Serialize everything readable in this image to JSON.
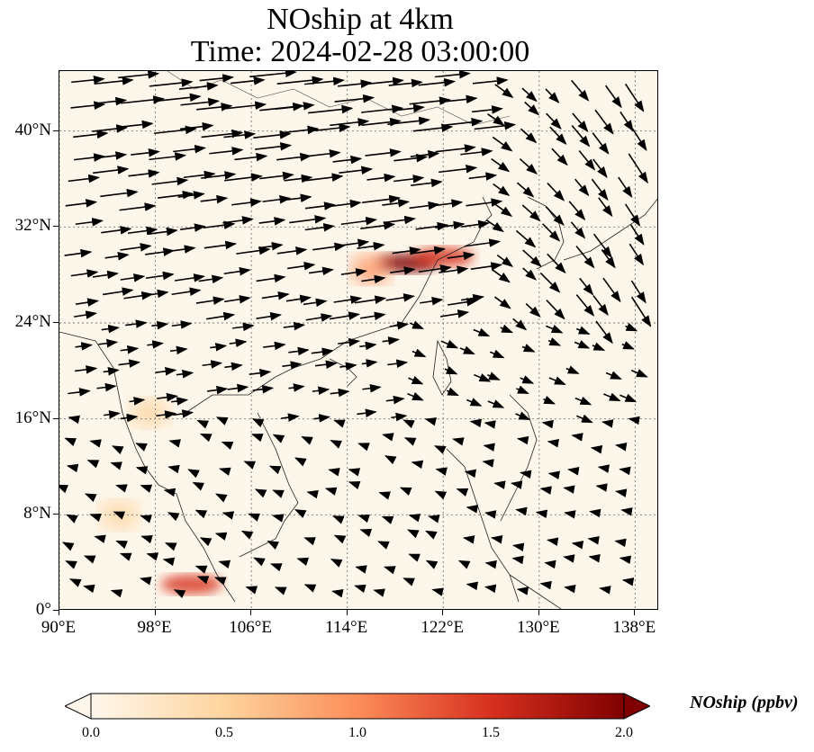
{
  "title": {
    "line1": "NOship at 4km",
    "line2": "Time: 2024-02-28 03:00:00"
  },
  "map": {
    "variable": "NOship",
    "level": "4km",
    "lon_range": [
      90,
      140
    ],
    "lat_range": [
      0,
      45
    ],
    "lat_ticks": [
      {
        "value": 40,
        "label": "40°N"
      },
      {
        "value": 32,
        "label": "32°N"
      },
      {
        "value": 24,
        "label": "24°N"
      },
      {
        "value": 16,
        "label": "16°N"
      },
      {
        "value": 8,
        "label": "8°N"
      },
      {
        "value": 0,
        "label": "0°"
      }
    ],
    "lon_ticks": [
      {
        "value": 90,
        "label": "90°E"
      },
      {
        "value": 98,
        "label": "98°E"
      },
      {
        "value": 106,
        "label": "106°E"
      },
      {
        "value": 114,
        "label": "114°E"
      },
      {
        "value": 122,
        "label": "122°E"
      },
      {
        "value": 130,
        "label": "130°E"
      },
      {
        "value": 138,
        "label": "138°E"
      }
    ],
    "gridlines": true,
    "colormap": "OrRd",
    "hotspots": [
      {
        "lon": 119,
        "lat": 29,
        "value": 2.0
      },
      {
        "lon": 122,
        "lat": 29.5,
        "value": 1.6
      },
      {
        "lon": 116,
        "lat": 28.5,
        "value": 1.0
      },
      {
        "lon": 101,
        "lat": 2.2,
        "value": 1.3
      },
      {
        "lon": 97.5,
        "lat": 16.5,
        "value": 0.7
      },
      {
        "lon": 95,
        "lat": 8,
        "value": 0.3
      }
    ]
  },
  "colorbar": {
    "label": "NOship (ppbv)",
    "min": 0.0,
    "max": 2.0,
    "extend": "both",
    "ticks": [
      {
        "value": 0.0,
        "label": "0.0"
      },
      {
        "value": 0.5,
        "label": "0.5"
      },
      {
        "value": 1.0,
        "label": "1.0"
      },
      {
        "value": 1.5,
        "label": "1.5"
      },
      {
        "value": 2.0,
        "label": "2.0"
      }
    ],
    "colors": [
      "#fff7ec",
      "#fdd49e",
      "#fc8d59",
      "#d7301f",
      "#7f0000"
    ]
  }
}
